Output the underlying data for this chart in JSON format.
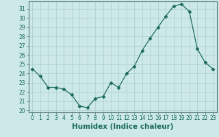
{
  "x": [
    0,
    1,
    2,
    3,
    4,
    5,
    6,
    7,
    8,
    9,
    10,
    11,
    12,
    13,
    14,
    15,
    16,
    17,
    18,
    19,
    20,
    21,
    22,
    23
  ],
  "y": [
    24.5,
    23.7,
    22.5,
    22.5,
    22.3,
    21.7,
    20.5,
    20.3,
    21.3,
    21.5,
    23.0,
    22.5,
    24.0,
    24.8,
    26.5,
    27.8,
    29.0,
    30.2,
    31.3,
    31.5,
    30.7,
    26.7,
    25.2,
    24.5
  ],
  "xlabel": "Humidex (Indice chaleur)",
  "xlim": [
    -0.5,
    23.5
  ],
  "ylim": [
    19.8,
    31.8
  ],
  "yticks": [
    20,
    21,
    22,
    23,
    24,
    25,
    26,
    27,
    28,
    29,
    30,
    31
  ],
  "xticks": [
    0,
    1,
    2,
    3,
    4,
    5,
    6,
    7,
    8,
    9,
    10,
    11,
    12,
    13,
    14,
    15,
    16,
    17,
    18,
    19,
    20,
    21,
    22,
    23
  ],
  "line_color": "#1a6b5a",
  "marker": "D",
  "marker_size": 2.5,
  "bg_color": "#cce8e8",
  "grid_color": "#aacccc",
  "tick_label_fontsize": 5.5,
  "xlabel_fontsize": 7.5,
  "spine_color": "#557777"
}
